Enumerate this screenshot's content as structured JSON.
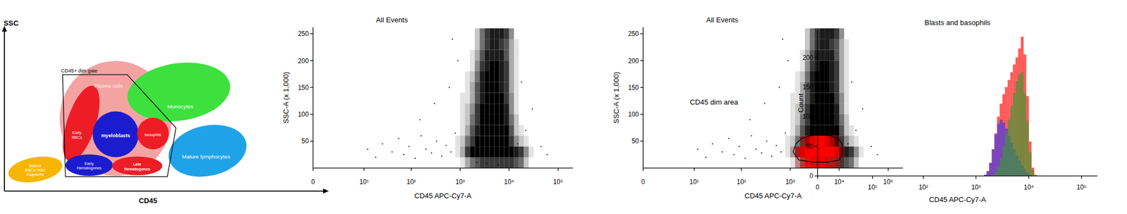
{
  "diagram": {
    "y_label": "SSC",
    "x_label": "CD45",
    "gate_label": "CD45+ dim gate",
    "populations": [
      {
        "label": [
          "Plasma cells"
        ],
        "color": "#f4a3a3"
      },
      {
        "label": [
          "Early",
          "RBCs"
        ],
        "color": "#ee1c25"
      },
      {
        "label": [
          "myeloblasts"
        ],
        "color": "#1c1ccf"
      },
      {
        "label": [
          "basophils"
        ],
        "color": "#ee1c25"
      },
      {
        "label": [
          "Early",
          "Hematogones"
        ],
        "color": "#1c1ccf"
      },
      {
        "label": [
          "Late",
          "Hematogones"
        ],
        "color": "#ee1c25"
      },
      {
        "label": [
          "Monocytes"
        ],
        "color": "#3ee03e"
      },
      {
        "label": [
          "Mature lymphocytes"
        ],
        "color": "#1fa3e8"
      },
      {
        "label": [
          "Mature",
          "RBCs/ RBC",
          "fragments"
        ],
        "color": "#f7b500"
      }
    ]
  },
  "chart_data": [
    {
      "type": "scatter",
      "title": "All Events",
      "x_label": "CD45 APC-Cy7-A",
      "y_label": "SSC-A (x 1,000)",
      "log": "x",
      "xlim": [
        0,
        200000
      ],
      "xticks": [
        {
          "value": 0,
          "label": "0"
        },
        {
          "value": 10,
          "label": "10¹"
        },
        {
          "value": 100,
          "label": "10²"
        },
        {
          "value": 1000,
          "label": "10³"
        },
        {
          "value": 10000,
          "label": "10⁴"
        },
        {
          "value": 100000,
          "label": "10⁵"
        }
      ],
      "ylim": [
        0,
        262
      ],
      "yticks": [
        50,
        100,
        150,
        200,
        250
      ],
      "color": "#000000",
      "x": [
        12,
        18,
        25,
        40,
        55,
        70,
        90,
        120,
        160,
        200,
        260,
        330,
        420,
        520,
        650,
        800,
        150,
        300,
        600,
        900,
        2200,
        3500,
        6000,
        15000,
        22000,
        30000,
        45000,
        60000,
        18000,
        700
      ],
      "values": [
        35,
        20,
        45,
        30,
        55,
        25,
        40,
        18,
        60,
        35,
        28,
        50,
        22,
        42,
        30,
        65,
        90,
        120,
        150,
        200,
        10,
        8,
        6,
        45,
        70,
        110,
        40,
        25,
        160,
        240
      ],
      "density": {
        "color": "#000000",
        "x_edges": [
          794,
          1000,
          1259,
          1585,
          1995,
          2512,
          3162,
          3981,
          5012,
          6310,
          7943,
          10000,
          12589,
          15849,
          19953,
          25119,
          31623
        ],
        "y_edges": [
          0,
          20,
          40,
          60,
          80,
          100,
          120,
          140,
          160,
          180,
          200,
          220,
          240,
          260
        ],
        "cells": [
          [
            0,
            1,
            3,
            5,
            6,
            7,
            7,
            7,
            7,
            7,
            7,
            7,
            6,
            5,
            2,
            0
          ],
          [
            1,
            3,
            7,
            9,
            9,
            9,
            9,
            9,
            9,
            9,
            9,
            9,
            8,
            7,
            4,
            1
          ],
          [
            1,
            2,
            5,
            7,
            9,
            9,
            9,
            9,
            9,
            9,
            9,
            7,
            4,
            2,
            1,
            0
          ],
          [
            0,
            1,
            3,
            6,
            8,
            9,
            9,
            9,
            9,
            9,
            9,
            6,
            2,
            1,
            0,
            0
          ],
          [
            0,
            1,
            2,
            5,
            7,
            9,
            9,
            9,
            9,
            9,
            8,
            5,
            2,
            0,
            0,
            0
          ],
          [
            0,
            1,
            2,
            4,
            7,
            9,
            9,
            9,
            9,
            9,
            8,
            4,
            1,
            0,
            0,
            0
          ],
          [
            0,
            1,
            1,
            3,
            6,
            8,
            9,
            9,
            9,
            9,
            7,
            4,
            1,
            0,
            0,
            0
          ],
          [
            0,
            0,
            1,
            3,
            6,
            8,
            9,
            9,
            9,
            8,
            7,
            3,
            1,
            0,
            0,
            0
          ],
          [
            0,
            0,
            1,
            2,
            5,
            8,
            9,
            9,
            9,
            8,
            7,
            3,
            1,
            0,
            0,
            0
          ],
          [
            0,
            0,
            0,
            1,
            4,
            7,
            8,
            9,
            9,
            8,
            7,
            3,
            1,
            0,
            0,
            0
          ],
          [
            0,
            0,
            0,
            1,
            3,
            6,
            8,
            8,
            8,
            8,
            6,
            3,
            1,
            0,
            0,
            0
          ],
          [
            0,
            0,
            0,
            0,
            2,
            5,
            7,
            8,
            8,
            7,
            6,
            3,
            1,
            0,
            0,
            0
          ],
          [
            0,
            0,
            0,
            0,
            2,
            5,
            7,
            8,
            8,
            8,
            7,
            4,
            0,
            0,
            0,
            0
          ]
        ]
      }
    },
    {
      "type": "scatter",
      "title": "All Events",
      "x_label": "CD45 APC-Cy7-A",
      "y_label": "SSC-A (x 1,000)",
      "log": "x",
      "xlim": [
        0,
        200000
      ],
      "xticks": [
        {
          "value": 0,
          "label": "0"
        },
        {
          "value": 10,
          "label": "10¹"
        },
        {
          "value": 100,
          "label": "10²"
        },
        {
          "value": 1000,
          "label": "10³"
        },
        {
          "value": 10000,
          "label": "10⁴"
        },
        {
          "value": 100000,
          "label": "10⁵"
        }
      ],
      "ylim": [
        0,
        262
      ],
      "yticks": [
        50,
        100,
        150,
        200,
        250
      ],
      "color": "#000000",
      "x": [
        12,
        18,
        25,
        40,
        55,
        70,
        90,
        120,
        160,
        200,
        260,
        330,
        420,
        520,
        650,
        800,
        150,
        300,
        600,
        900,
        2200,
        3500,
        6000,
        15000,
        22000,
        30000,
        45000,
        60000,
        18000,
        700
      ],
      "values": [
        35,
        20,
        45,
        30,
        55,
        25,
        40,
        18,
        60,
        35,
        28,
        50,
        22,
        42,
        30,
        65,
        90,
        120,
        150,
        200,
        10,
        8,
        6,
        45,
        70,
        110,
        40,
        25,
        160,
        240
      ],
      "density": {
        "color": "#000000",
        "x_edges": [
          794,
          1000,
          1259,
          1585,
          1995,
          2512,
          3162,
          3981,
          5012,
          6310,
          7943,
          10000,
          12589,
          15849,
          19953,
          25119,
          31623
        ],
        "y_edges": [
          0,
          20,
          40,
          60,
          80,
          100,
          120,
          140,
          160,
          180,
          200,
          220,
          240,
          260
        ],
        "cells": [
          [
            0,
            1,
            3,
            5,
            6,
            7,
            7,
            7,
            7,
            7,
            7,
            7,
            6,
            5,
            2,
            0
          ],
          [
            1,
            3,
            7,
            9,
            9,
            9,
            9,
            9,
            9,
            9,
            9,
            9,
            8,
            7,
            4,
            1
          ],
          [
            1,
            2,
            5,
            7,
            9,
            9,
            9,
            9,
            9,
            9,
            9,
            7,
            4,
            2,
            1,
            0
          ],
          [
            0,
            1,
            3,
            6,
            8,
            9,
            9,
            9,
            9,
            9,
            9,
            6,
            2,
            1,
            0,
            0
          ],
          [
            0,
            1,
            2,
            5,
            7,
            9,
            9,
            9,
            9,
            9,
            8,
            5,
            2,
            0,
            0,
            0
          ],
          [
            0,
            1,
            2,
            4,
            7,
            9,
            9,
            9,
            9,
            9,
            8,
            4,
            1,
            0,
            0,
            0
          ],
          [
            0,
            1,
            1,
            3,
            6,
            8,
            9,
            9,
            9,
            9,
            7,
            4,
            1,
            0,
            0,
            0
          ],
          [
            0,
            0,
            1,
            3,
            6,
            8,
            9,
            9,
            9,
            8,
            7,
            3,
            1,
            0,
            0,
            0
          ],
          [
            0,
            0,
            1,
            2,
            5,
            8,
            9,
            9,
            9,
            8,
            7,
            3,
            1,
            0,
            0,
            0
          ],
          [
            0,
            0,
            0,
            1,
            4,
            7,
            8,
            9,
            9,
            8,
            7,
            3,
            1,
            0,
            0,
            0
          ],
          [
            0,
            0,
            0,
            1,
            3,
            6,
            8,
            8,
            8,
            8,
            6,
            3,
            1,
            0,
            0,
            0
          ],
          [
            0,
            0,
            0,
            0,
            2,
            5,
            7,
            8,
            8,
            7,
            6,
            3,
            1,
            0,
            0,
            0
          ],
          [
            0,
            0,
            0,
            0,
            2,
            5,
            7,
            8,
            8,
            8,
            7,
            4,
            0,
            0,
            0,
            0
          ]
        ]
      },
      "gated_density": {
        "color": "#ff0000",
        "x_edges": [
          794,
          1000,
          1259,
          1585,
          1995,
          2512,
          3162,
          3981,
          5012,
          6310,
          7943,
          10000,
          12589,
          15849,
          19953,
          25119,
          31623
        ],
        "y_edges": [
          0,
          20,
          40,
          60
        ],
        "cells": [
          [
            0,
            0,
            2,
            5,
            7,
            8,
            8,
            8,
            7,
            6,
            4,
            1,
            0,
            0,
            0,
            0
          ],
          [
            0,
            1,
            5,
            8,
            9,
            9,
            9,
            9,
            9,
            9,
            8,
            4,
            0,
            0,
            0,
            0
          ],
          [
            0,
            0,
            0,
            3,
            6,
            8,
            9,
            9,
            8,
            6,
            3,
            0,
            0,
            0,
            0,
            0
          ]
        ]
      },
      "gate": {
        "color": "#000000",
        "x": [
          1150,
          1300,
          1700,
          2600,
          4000,
          6500,
          9500,
          11500,
          11800,
          10000,
          6000,
          3000,
          1500
        ],
        "y": [
          30,
          45,
          55,
          60,
          62,
          60,
          55,
          45,
          28,
          15,
          11,
          11,
          15
        ]
      },
      "annotations": [
        {
          "text": "CD45 dim area",
          "x": 8,
          "y": 118
        }
      ]
    },
    {
      "type": "histogram",
      "title": "Blasts and basophils",
      "x_label": "CD45 APC-Cy7-A",
      "y_label": "Count",
      "log": "x",
      "xlim": [
        0,
        200000
      ],
      "xticks": [
        {
          "value": 0,
          "label": "0"
        },
        {
          "value": 10,
          "label": "10¹"
        },
        {
          "value": 100,
          "label": "10²"
        },
        {
          "value": 1000,
          "label": "10³"
        },
        {
          "value": 10000,
          "label": "10⁴"
        },
        {
          "value": 100000,
          "label": "10⁵"
        }
      ],
      "ylim": [
        0,
        246
      ],
      "yticks": [
        0,
        50,
        100,
        150,
        200
      ],
      "bins": [
        1413,
        1585,
        1778,
        1995,
        2239,
        2512,
        2818,
        3162,
        3548,
        3981,
        4467,
        5012,
        5623,
        6310,
        7079,
        7943,
        8913,
        10000,
        11220,
        12589,
        14125
      ],
      "series": [
        {
          "color": "#ff5c5c",
          "values": [
            2,
            8,
            22,
            45,
            72,
            100,
            122,
            138,
            150,
            162,
            175,
            188,
            200,
            215,
            235,
            205,
            135,
            58,
            14,
            2
          ]
        },
        {
          "color": "#5b3fd4",
          "values": [
            2,
            8,
            22,
            45,
            70,
            88,
            95,
            90,
            80,
            68,
            56,
            45,
            35,
            26,
            18,
            11,
            6,
            2,
            0,
            0
          ]
        },
        {
          "color": "#3a9a30",
          "values": [
            0,
            0,
            0,
            2,
            6,
            15,
            30,
            50,
            72,
            95,
            118,
            140,
            160,
            172,
            175,
            140,
            92,
            40,
            10,
            1
          ]
        }
      ]
    }
  ]
}
